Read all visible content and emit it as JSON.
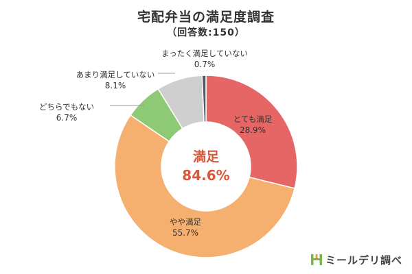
{
  "chart_data": {
    "type": "pie",
    "donut": true,
    "title": "宅配弁当の満足度調査",
    "subtitle": "（回答数:150）",
    "slices": [
      {
        "label": "とても満足",
        "value": 28.9,
        "display": "28.9%",
        "color": "#e56664"
      },
      {
        "label": "やや満足",
        "value": 55.7,
        "display": "55.7%",
        "color": "#f5b06f"
      },
      {
        "label": "どちらでもない",
        "value": 6.7,
        "display": "6.7%",
        "color": "#8ec975"
      },
      {
        "label": "あまり満足していない",
        "value": 8.1,
        "display": "8.1%",
        "color": "#cfcfcf"
      },
      {
        "label": "まったく満足していない",
        "value": 0.7,
        "display": "0.7%",
        "color": "#555a66"
      }
    ],
    "center_label": "満足",
    "center_value": "84.6%",
    "center_color": "#d9573a",
    "start_angle_deg": 0,
    "direction": "clockwise",
    "legend": "none"
  },
  "brand": {
    "name": "ミールデリ調べ",
    "icon": "mealdeli-logo-icon",
    "icon_color": "#7ab648"
  }
}
